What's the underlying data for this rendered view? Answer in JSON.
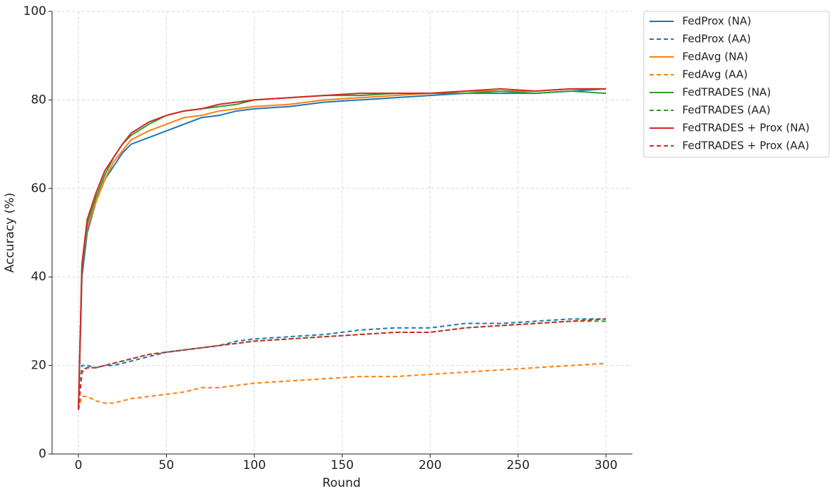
{
  "chart_data": {
    "type": "line",
    "x_label": "Round",
    "y_label": "Accuracy (%)",
    "x": [
      0,
      2,
      5,
      10,
      15,
      20,
      25,
      30,
      40,
      50,
      60,
      70,
      80,
      90,
      100,
      120,
      140,
      160,
      180,
      200,
      220,
      240,
      260,
      280,
      300
    ],
    "series": [
      {
        "name": "FedProx (NA)",
        "color": "#1f77b4",
        "linestyle": "solid",
        "values": [
          10,
          40,
          50,
          57,
          62,
          65,
          68,
          70,
          71.5,
          73,
          74.5,
          76,
          76.5,
          77.5,
          78,
          78.5,
          79.5,
          80,
          80.5,
          81,
          81.5,
          81.5,
          81.5,
          82,
          82.5
        ]
      },
      {
        "name": "FedProx (AA)",
        "color": "#1f77b4",
        "linestyle": "dashed",
        "values": [
          10,
          20,
          20,
          19.5,
          20,
          20,
          20.5,
          21,
          22,
          23,
          23.5,
          24,
          24.5,
          25.5,
          26,
          26.5,
          27,
          28,
          28.5,
          28.5,
          29.5,
          29.5,
          30,
          30.5,
          30.5
        ]
      },
      {
        "name": "FedAvg (NA)",
        "color": "#ff7f0e",
        "linestyle": "solid",
        "values": [
          10,
          42,
          51,
          57,
          62,
          66,
          68.5,
          71,
          73,
          74.5,
          76,
          76.5,
          77.5,
          78,
          78.5,
          79,
          80,
          80.5,
          81,
          81.5,
          82,
          82,
          82,
          82.5,
          82.5
        ]
      },
      {
        "name": "FedAvg (AA)",
        "color": "#ff7f0e",
        "linestyle": "dashed",
        "values": [
          10,
          13,
          13,
          12,
          11.5,
          11.5,
          12,
          12.5,
          13,
          13.5,
          14,
          15,
          15,
          15.5,
          16,
          16.5,
          17,
          17.5,
          17.5,
          18,
          18.5,
          19,
          19.5,
          20,
          20.5
        ]
      },
      {
        "name": "FedTRADES (NA)",
        "color": "#2ca02c",
        "linestyle": "solid",
        "values": [
          10,
          42,
          52,
          58,
          63,
          67,
          70,
          72,
          74.5,
          76.5,
          77.5,
          78,
          78.5,
          79,
          80,
          80.5,
          81,
          81,
          81.5,
          81.5,
          81.5,
          82,
          81.5,
          82,
          81.5
        ]
      },
      {
        "name": "FedTRADES (AA)",
        "color": "#2ca02c",
        "linestyle": "dashed",
        "values": [
          10,
          19,
          19.5,
          19.5,
          20,
          20.5,
          21,
          21.5,
          22.5,
          23,
          23.5,
          24,
          24.5,
          25,
          25.5,
          26,
          26.5,
          27,
          27.5,
          27.5,
          28.5,
          29,
          29.5,
          30,
          30
        ]
      },
      {
        "name": "FedTRADES + Prox (NA)",
        "color": "#d62728",
        "linestyle": "solid",
        "values": [
          10,
          43,
          53,
          59,
          64,
          67,
          70,
          72.5,
          75,
          76.5,
          77.5,
          78,
          79,
          79.5,
          80,
          80.5,
          81,
          81.5,
          81.5,
          81.5,
          82,
          82.5,
          82,
          82.5,
          82.5
        ]
      },
      {
        "name": "FedTRADES + Prox (AA)",
        "color": "#d62728",
        "linestyle": "dashed",
        "values": [
          10,
          18.5,
          19.5,
          19.5,
          20,
          20.5,
          21,
          21.5,
          22.5,
          23,
          23.5,
          24,
          24.5,
          25,
          25.5,
          26,
          26.5,
          27,
          27.5,
          27.5,
          28.5,
          29,
          29.5,
          30,
          30.5
        ]
      }
    ],
    "xlim": [
      -15,
      315
    ],
    "ylim": [
      0,
      100
    ],
    "xticks": [
      0,
      50,
      100,
      150,
      200,
      250,
      300
    ],
    "yticks": [
      0,
      20,
      40,
      60,
      80,
      100
    ],
    "grid": true,
    "legend": "outside-upper-right"
  }
}
